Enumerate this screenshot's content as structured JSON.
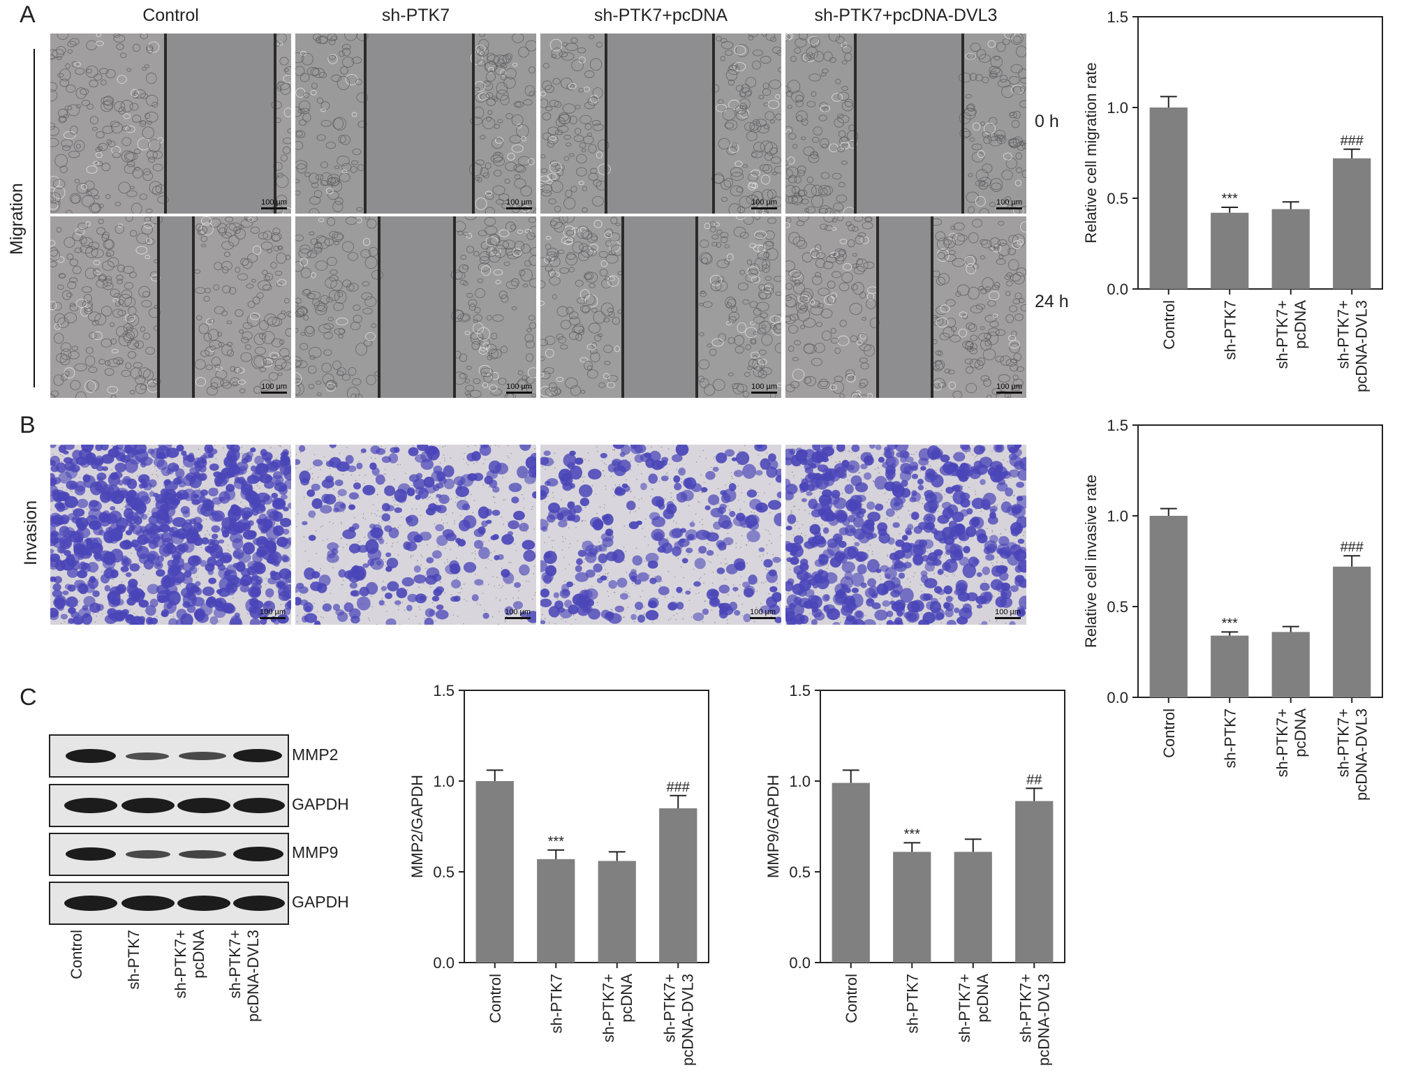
{
  "panel_letters": {
    "a": "A",
    "b": "B",
    "c": "C"
  },
  "groups": [
    "Control",
    "sh-PTK7",
    "sh-PTK7+pcDNA",
    "sh-PTK7+pcDNA-DVL3"
  ],
  "row_labels": {
    "migration": "Migration",
    "invasion": "Invasion"
  },
  "time_labels": {
    "t0": "0 h",
    "t24": "24 h"
  },
  "scale_bar": "100 µm",
  "blot": {
    "bands": [
      "MMP2",
      "GAPDH",
      "MMP9",
      "GAPDH"
    ],
    "lanes": [
      [
        "Control"
      ],
      [
        "sh-PTK7"
      ],
      [
        "sh-PTK7+",
        "pcDNA"
      ],
      [
        "sh-PTK7+",
        "pcDNA-DVL3"
      ]
    ]
  },
  "colors": {
    "bar": "#808080",
    "invasion_stain": "#4a45b8",
    "migration_bg": "#9a9a9c"
  },
  "chart_data": [
    {
      "id": "migration",
      "type": "bar",
      "categories": [
        [
          "Control"
        ],
        [
          "sh-PTK7"
        ],
        [
          "sh-PTK7+",
          "pcDNA"
        ],
        [
          "sh-PTK7+",
          "pcDNA-DVL3"
        ]
      ],
      "values": [
        1.0,
        0.42,
        0.44,
        0.72
      ],
      "errors": [
        0.06,
        0.03,
        0.04,
        0.05
      ],
      "annotations": [
        "",
        "***",
        "",
        "###"
      ],
      "ylabel": "Relative cell migration rate",
      "ylim": [
        0,
        1.5
      ],
      "yticks": [
        "0.0",
        "0.5",
        "1.0",
        "1.5"
      ]
    },
    {
      "id": "invasion",
      "type": "bar",
      "categories": [
        [
          "Control"
        ],
        [
          "sh-PTK7"
        ],
        [
          "sh-PTK7+",
          "pcDNA"
        ],
        [
          "sh-PTK7+",
          "pcDNA-DVL3"
        ]
      ],
      "values": [
        1.0,
        0.34,
        0.36,
        0.72
      ],
      "errors": [
        0.04,
        0.02,
        0.03,
        0.06
      ],
      "annotations": [
        "",
        "***",
        "",
        "###"
      ],
      "ylabel": "Relative cell invasive rate",
      "ylim": [
        0,
        1.5
      ],
      "yticks": [
        "0.0",
        "0.5",
        "1.0",
        "1.5"
      ]
    },
    {
      "id": "mmp2",
      "type": "bar",
      "categories": [
        [
          "Control"
        ],
        [
          "sh-PTK7"
        ],
        [
          "sh-PTK7+",
          "pcDNA"
        ],
        [
          "sh-PTK7+",
          "pcDNA-DVL3"
        ]
      ],
      "values": [
        1.0,
        0.57,
        0.56,
        0.85
      ],
      "errors": [
        0.06,
        0.05,
        0.05,
        0.07
      ],
      "annotations": [
        "",
        "***",
        "",
        "###"
      ],
      "ylabel": "MMP2/GAPDH",
      "ylim": [
        0,
        1.5
      ],
      "yticks": [
        "0.0",
        "0.5",
        "1.0",
        "1.5"
      ]
    },
    {
      "id": "mmp9",
      "type": "bar",
      "categories": [
        [
          "Control"
        ],
        [
          "sh-PTK7"
        ],
        [
          "sh-PTK7+",
          "pcDNA"
        ],
        [
          "sh-PTK7+",
          "pcDNA-DVL3"
        ]
      ],
      "values": [
        0.99,
        0.61,
        0.61,
        0.89
      ],
      "errors": [
        0.07,
        0.05,
        0.07,
        0.07
      ],
      "annotations": [
        "",
        "***",
        "",
        "##"
      ],
      "ylabel": "MMP9/GAPDH",
      "ylim": [
        0,
        1.5
      ],
      "yticks": [
        "0.0",
        "0.5",
        "1.0",
        "1.5"
      ]
    }
  ]
}
